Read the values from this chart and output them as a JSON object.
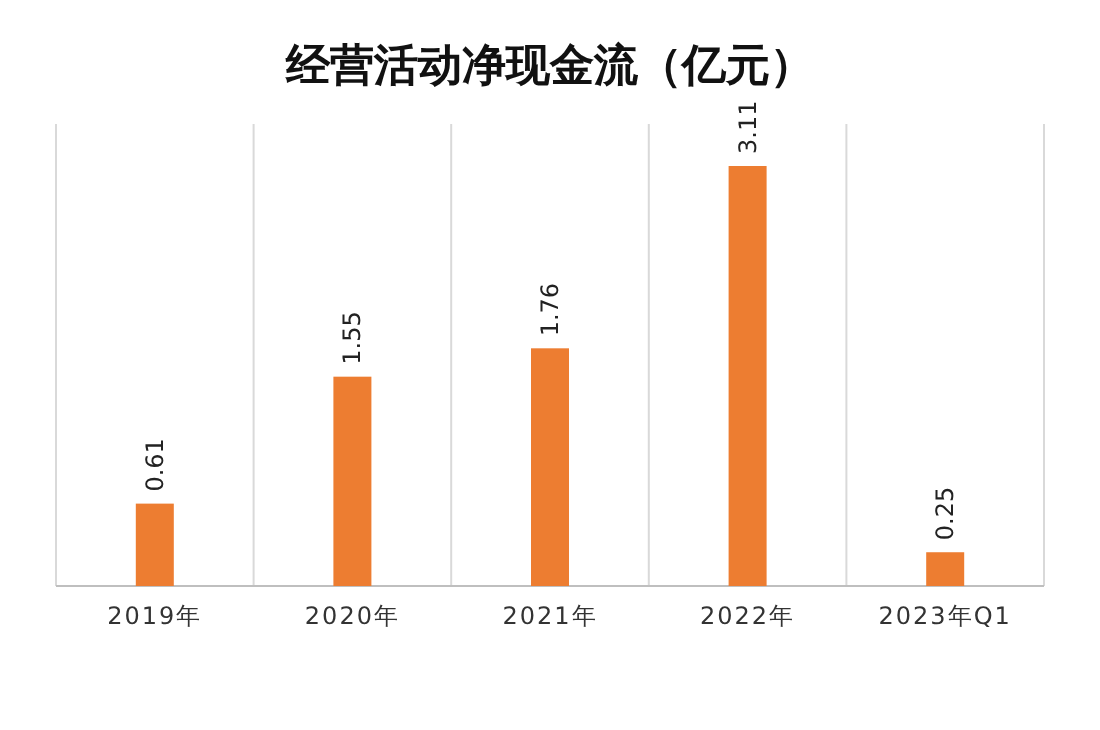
{
  "chart_data": {
    "type": "bar",
    "title": "经营活动净现金流（亿元）",
    "categories": [
      "2019年",
      "2020年",
      "2021年",
      "2022年",
      "2023年Q1"
    ],
    "values": [
      0.61,
      1.55,
      1.76,
      3.11,
      0.25
    ],
    "color": "#ed7d31",
    "data_labels": true,
    "grid": "x"
  }
}
